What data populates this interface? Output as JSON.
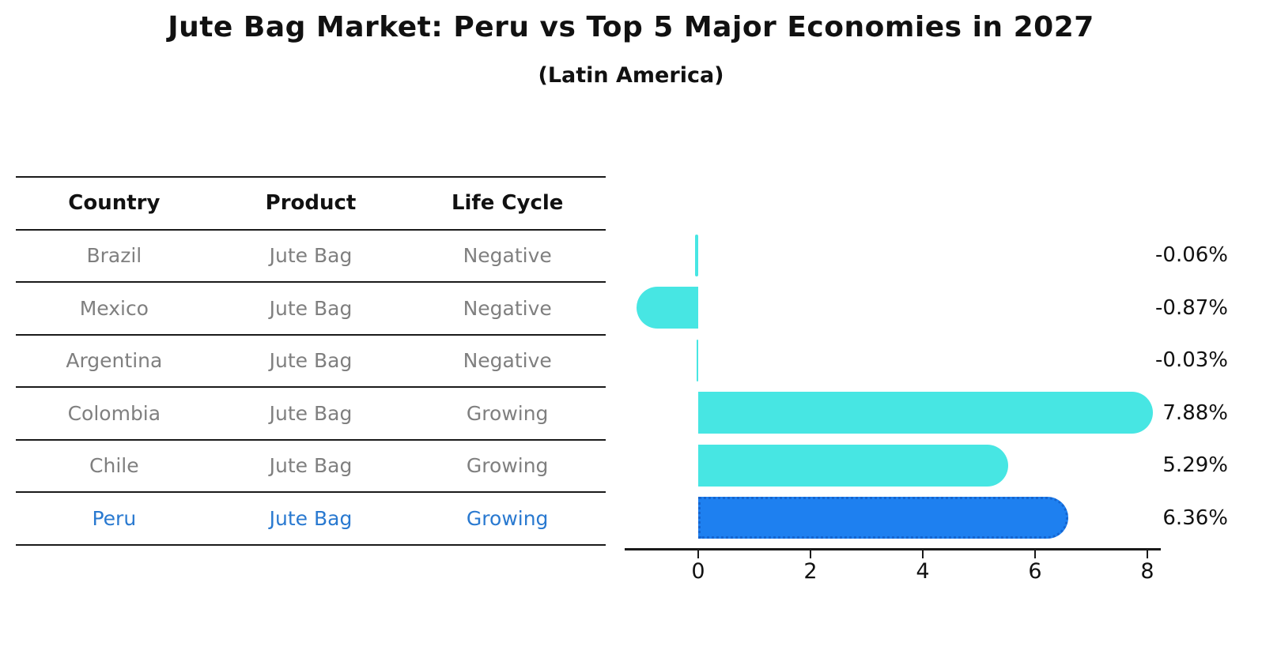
{
  "title": "Jute Bag Market: Peru vs Top 5 Major Economies in 2027",
  "subtitle": "(Latin America)",
  "table": {
    "headers": [
      "Country",
      "Product",
      "Life Cycle"
    ],
    "rows": [
      {
        "country": "Brazil",
        "product": "Jute Bag",
        "life_cycle": "Negative",
        "highlighted": false
      },
      {
        "country": "Mexico",
        "product": "Jute Bag",
        "life_cycle": "Negative",
        "highlighted": false
      },
      {
        "country": "Argentina",
        "product": "Jute Bag",
        "life_cycle": "Negative",
        "highlighted": false
      },
      {
        "country": "Colombia",
        "product": "Jute Bag",
        "life_cycle": "Growing",
        "highlighted": false
      },
      {
        "country": "Chile",
        "product": "Jute Bag",
        "life_cycle": "Growing",
        "highlighted": false
      },
      {
        "country": "Peru",
        "product": "Jute Bag",
        "life_cycle": "Growing",
        "highlighted": true
      }
    ]
  },
  "chart_data": {
    "type": "bar",
    "orientation": "horizontal",
    "title": "Jute Bag Market: Peru vs Top 5 Major Economies in 2027",
    "subtitle": "(Latin America)",
    "categories": [
      "Brazil",
      "Mexico",
      "Argentina",
      "Colombia",
      "Chile",
      "Peru"
    ],
    "values": [
      -0.06,
      -0.87,
      -0.03,
      7.88,
      5.29,
      6.36
    ],
    "value_labels": [
      "-0.06%",
      "-0.87%",
      "-0.03%",
      "7.88%",
      "5.29%",
      "6.36%"
    ],
    "unit": "%",
    "x_tick_values": [
      0,
      2,
      4,
      6,
      8
    ],
    "x_tick_labels": [
      "0",
      "2",
      "4",
      "6",
      "8"
    ],
    "xlim": [
      -1.3,
      8.3
    ],
    "grid": false,
    "legend": false,
    "highlight_index": 5,
    "bar_color": "#47e6e3",
    "highlight_bar_color": "#1e80f0",
    "highlight_edge_color": "#1565d0",
    "highlight_edge_style": "dotted"
  },
  "colors": {
    "background": "#ffffff",
    "axis_line": "#1a1a1a",
    "table_line": "#1a1a1a",
    "table_text": "#7f7f7f",
    "header_text": "#111111",
    "highlight_text": "#2979d0",
    "label_text": "#111111"
  }
}
